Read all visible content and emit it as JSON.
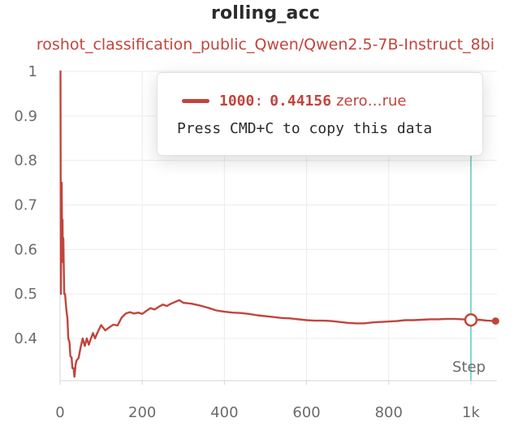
{
  "chart_data": {
    "type": "line",
    "title": "rolling_acc",
    "subtitle": "roshot_classification_public_Qwen/Qwen2.5-7B-Instruct_8bi",
    "xlabel": "Step",
    "ylabel": "",
    "xlim": [
      0,
      1060
    ],
    "ylim": [
      0.3,
      1.0
    ],
    "x_ticks": [
      0,
      200,
      400,
      600,
      800,
      1000
    ],
    "x_tick_labels": [
      "0",
      "200",
      "400",
      "600",
      "800",
      "1k"
    ],
    "y_ticks": [
      0.4,
      0.5,
      0.6,
      0.7,
      0.8,
      0.9,
      1.0
    ],
    "y_tick_labels": [
      "0.4",
      "0.5",
      "0.6",
      "0.7",
      "0.8",
      "0.9",
      "1"
    ],
    "grid": true,
    "series": [
      {
        "name": "zeroshot_classification_public_Qwen/Qwen2.5-7B-Instruct_8bit_true",
        "color": "#c1453d",
        "points": [
          [
            1,
            1.0
          ],
          [
            2,
            0.5
          ],
          [
            3,
            0.667
          ],
          [
            4,
            0.75
          ],
          [
            5,
            0.6
          ],
          [
            6,
            0.667
          ],
          [
            7,
            0.571
          ],
          [
            8,
            0.625
          ],
          [
            9,
            0.556
          ],
          [
            10,
            0.5
          ],
          [
            12,
            0.5
          ],
          [
            15,
            0.467
          ],
          [
            18,
            0.444
          ],
          [
            20,
            0.4
          ],
          [
            23,
            0.391
          ],
          [
            25,
            0.36
          ],
          [
            28,
            0.357
          ],
          [
            30,
            0.333
          ],
          [
            33,
            0.333
          ],
          [
            35,
            0.314
          ],
          [
            38,
            0.342
          ],
          [
            40,
            0.35
          ],
          [
            45,
            0.356
          ],
          [
            50,
            0.38
          ],
          [
            55,
            0.4
          ],
          [
            60,
            0.383
          ],
          [
            65,
            0.4
          ],
          [
            70,
            0.386
          ],
          [
            75,
            0.4
          ],
          [
            80,
            0.412
          ],
          [
            85,
            0.4
          ],
          [
            90,
            0.411
          ],
          [
            95,
            0.421
          ],
          [
            100,
            0.43
          ],
          [
            110,
            0.418
          ],
          [
            120,
            0.425
          ],
          [
            130,
            0.431
          ],
          [
            140,
            0.429
          ],
          [
            150,
            0.447
          ],
          [
            160,
            0.456
          ],
          [
            170,
            0.459
          ],
          [
            180,
            0.456
          ],
          [
            190,
            0.458
          ],
          [
            200,
            0.455
          ],
          [
            210,
            0.462
          ],
          [
            220,
            0.468
          ],
          [
            230,
            0.465
          ],
          [
            240,
            0.471
          ],
          [
            250,
            0.476
          ],
          [
            260,
            0.473
          ],
          [
            270,
            0.478
          ],
          [
            280,
            0.482
          ],
          [
            290,
            0.486
          ],
          [
            300,
            0.48
          ],
          [
            320,
            0.478
          ],
          [
            340,
            0.474
          ],
          [
            360,
            0.469
          ],
          [
            380,
            0.463
          ],
          [
            400,
            0.46
          ],
          [
            420,
            0.458
          ],
          [
            440,
            0.457
          ],
          [
            460,
            0.455
          ],
          [
            480,
            0.452
          ],
          [
            500,
            0.45
          ],
          [
            520,
            0.448
          ],
          [
            540,
            0.446
          ],
          [
            560,
            0.445
          ],
          [
            580,
            0.443
          ],
          [
            600,
            0.441
          ],
          [
            620,
            0.44
          ],
          [
            640,
            0.44
          ],
          [
            660,
            0.439
          ],
          [
            680,
            0.437
          ],
          [
            700,
            0.435
          ],
          [
            720,
            0.434
          ],
          [
            740,
            0.434
          ],
          [
            760,
            0.436
          ],
          [
            780,
            0.437
          ],
          [
            800,
            0.438
          ],
          [
            820,
            0.439
          ],
          [
            840,
            0.441
          ],
          [
            860,
            0.441
          ],
          [
            880,
            0.442
          ],
          [
            900,
            0.443
          ],
          [
            920,
            0.443
          ],
          [
            940,
            0.444
          ],
          [
            960,
            0.444
          ],
          [
            980,
            0.443
          ],
          [
            1000,
            0.44156
          ],
          [
            1020,
            0.442
          ],
          [
            1040,
            0.44
          ],
          [
            1060,
            0.439
          ]
        ]
      }
    ],
    "hover": {
      "step": 1000,
      "step_label": "1000",
      "value": 0.44156,
      "value_label": "0.44156",
      "series_label": "zero…rue",
      "hint": "Press CMD+C to copy this data",
      "line_color": "#5ec8c8"
    }
  }
}
